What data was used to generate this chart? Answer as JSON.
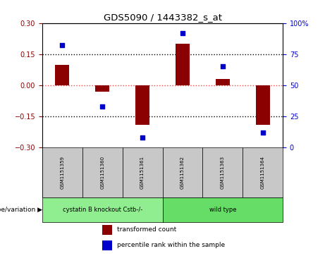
{
  "title": "GDS5090 / 1443382_s_at",
  "samples": [
    "GSM1151359",
    "GSM1151360",
    "GSM1151361",
    "GSM1151362",
    "GSM1151363",
    "GSM1151364"
  ],
  "transformed_count": [
    0.1,
    -0.03,
    -0.19,
    0.2,
    0.03,
    -0.19
  ],
  "percentile_rank": [
    82,
    33,
    8,
    92,
    65,
    12
  ],
  "groups": [
    {
      "label": "cystatin B knockout Cstb-/-",
      "samples": [
        0,
        1,
        2
      ],
      "color": "#90EE90"
    },
    {
      "label": "wild type",
      "samples": [
        3,
        4,
        5
      ],
      "color": "#66DD66"
    }
  ],
  "ylim_left": [
    -0.3,
    0.3
  ],
  "ylim_right": [
    0,
    100
  ],
  "yticks_left": [
    -0.3,
    -0.15,
    0,
    0.15,
    0.3
  ],
  "yticks_right": [
    0,
    25,
    50,
    75,
    100
  ],
  "bar_color": "#8B0000",
  "dot_color": "#0000CD",
  "hline_color": "#FF4444",
  "dotline_color": "black",
  "bar_width": 0.35,
  "legend_labels": [
    "transformed count",
    "percentile rank within the sample"
  ],
  "genotype_label": "genotype/variation"
}
